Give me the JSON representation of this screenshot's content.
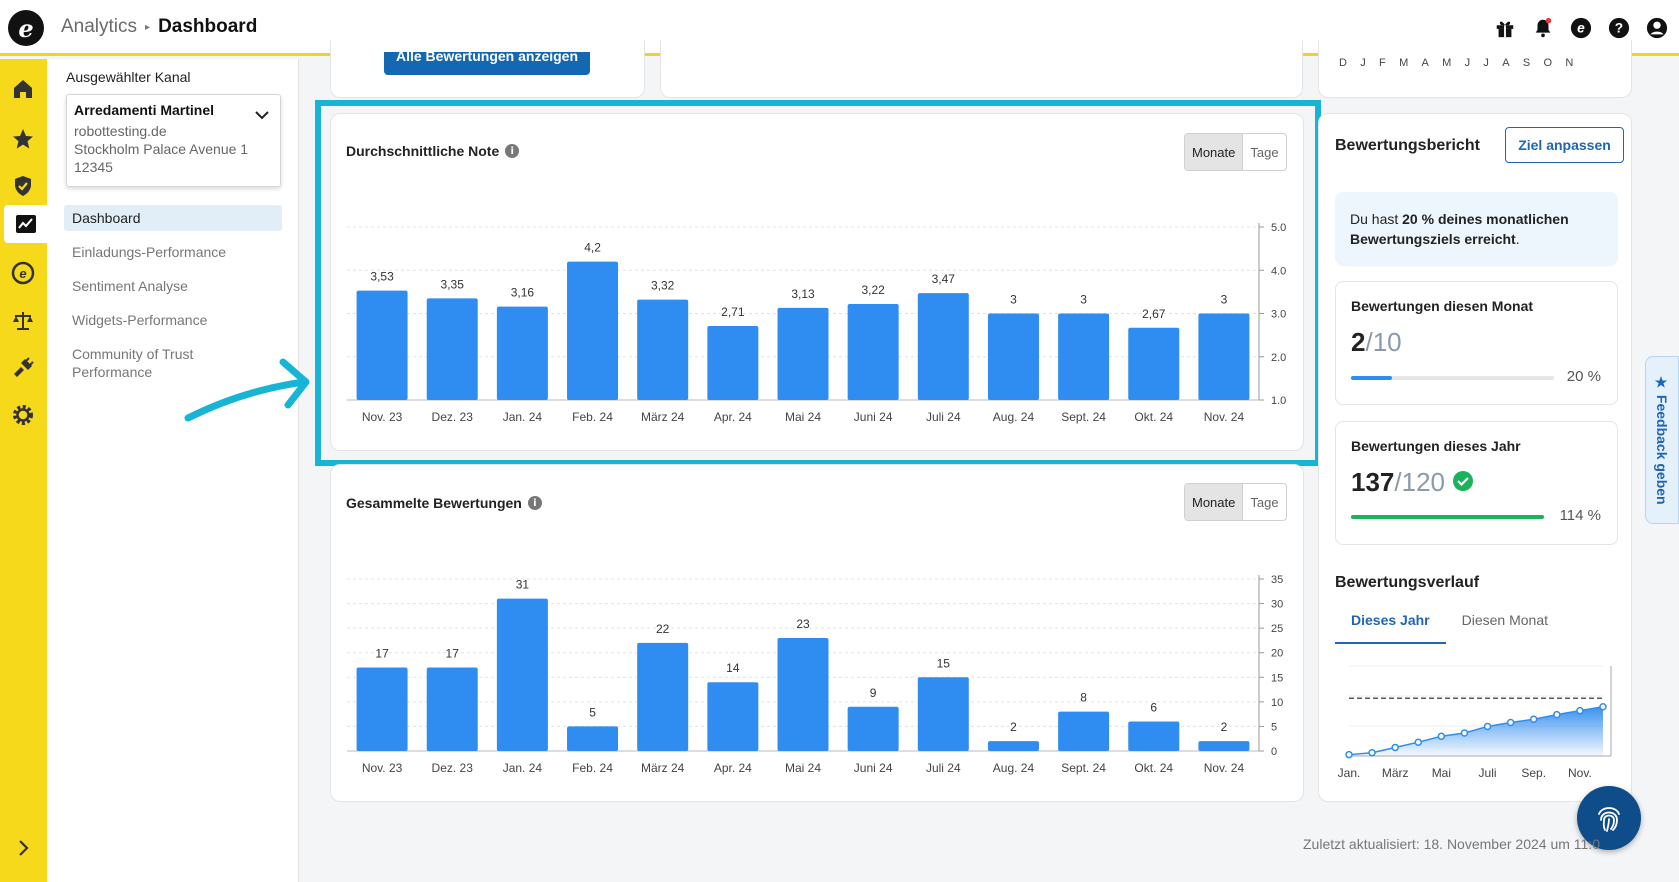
{
  "header": {
    "logo": "e",
    "section": "Analytics",
    "page": "Dashboard"
  },
  "topicons": [
    "gift-icon",
    "bell-icon",
    "trustedshops-icon",
    "help-icon",
    "account-icon"
  ],
  "subnav": {
    "label": "Ausgewählter Kanal",
    "channel": {
      "name": "Arredamenti Martinel",
      "line1": "robottesting.de",
      "line2": "Stockholm Palace Avenue 1",
      "line3": "12345"
    },
    "items": [
      {
        "label": "Dashboard",
        "active": true
      },
      {
        "label": "Einladungs-Performance"
      },
      {
        "label": "Sentiment Analyse"
      },
      {
        "label": "Widgets-Performance"
      },
      {
        "label": "Community of Trust Performance"
      }
    ]
  },
  "top_partial": {
    "button": "Alle Bewertungen anzeigen",
    "months": "DJFMAMJJASON"
  },
  "chart_avg": {
    "title": "Durchschnittliche Note",
    "toggle": {
      "on": "Monate",
      "off": "Tage"
    }
  },
  "chart_count": {
    "title": "Gesammelte Bewertungen",
    "toggle": {
      "on": "Monate",
      "off": "Tage"
    }
  },
  "chart_data": [
    {
      "type": "bar",
      "title": "Durchschnittliche Note",
      "categories": [
        "Nov. 23",
        "Dez. 23",
        "Jan. 24",
        "Feb. 24",
        "März 24",
        "Apr. 24",
        "Mai 24",
        "Juni 24",
        "Juli 24",
        "Aug. 24",
        "Sept. 24",
        "Okt. 24",
        "Nov. 24"
      ],
      "values": [
        3.53,
        3.35,
        3.16,
        4.2,
        3.32,
        2.71,
        3.13,
        3.22,
        3.47,
        3,
        3,
        2.67,
        3
      ],
      "labels": [
        "3,53",
        "3,35",
        "3,16",
        "4,2",
        "3,32",
        "2,71",
        "3,13",
        "3,22",
        "3,47",
        "3",
        "3",
        "2,67",
        "3"
      ],
      "yticks": [
        "5.0",
        "4.0",
        "3.0",
        "2.0",
        "1.0"
      ],
      "ylim": [
        1,
        5
      ]
    },
    {
      "type": "bar",
      "title": "Gesammelte Bewertungen",
      "categories": [
        "Nov. 23",
        "Dez. 23",
        "Jan. 24",
        "Feb. 24",
        "März 24",
        "Apr. 24",
        "Mai 24",
        "Juni 24",
        "Juli 24",
        "Aug. 24",
        "Sept. 24",
        "Okt. 24",
        "Nov. 24"
      ],
      "values": [
        17,
        17,
        31,
        5,
        22,
        14,
        23,
        9,
        15,
        2,
        8,
        6,
        2
      ],
      "yticks": [
        "35",
        "30",
        "25",
        "20",
        "15",
        "10",
        "5",
        "0"
      ],
      "ylim": [
        0,
        35
      ]
    },
    {
      "type": "area",
      "title": "Bewertungsverlauf",
      "x_labels": [
        "Jan.",
        "März",
        "Mai",
        "Juli",
        "Sep.",
        "Nov."
      ],
      "values": [
        2,
        5,
        13,
        21,
        30,
        35,
        45,
        51,
        56,
        63,
        69,
        75
      ],
      "target": 88,
      "ylim": [
        0,
        137
      ]
    }
  ],
  "report": {
    "title": "Bewertungsbericht",
    "goal_button": "Ziel anpassen",
    "goal_text_pre": "Du hast ",
    "goal_text_bold": "20 % deines monatlichen Bewertungsziels erreicht",
    "goal_text_post": ".",
    "month": {
      "title": "Bewertungen diesen Monat",
      "value": "2",
      "of": "/10",
      "pct": "20 %",
      "fraction": 0.2,
      "color": "#2f8cf0"
    },
    "year": {
      "title": "Bewertungen dieses Jahr",
      "value": "137",
      "of": "/120",
      "pct": "114 %",
      "fraction": 1.0,
      "color": "#19b35c"
    },
    "history": {
      "title": "Bewertungsverlauf",
      "tab1": "Dieses Jahr",
      "tab2": "Diesen Monat"
    }
  },
  "feedback": "★ Feedback geben",
  "footer": "Zuletzt aktualisiert: 18. November 2024 um 11:0"
}
